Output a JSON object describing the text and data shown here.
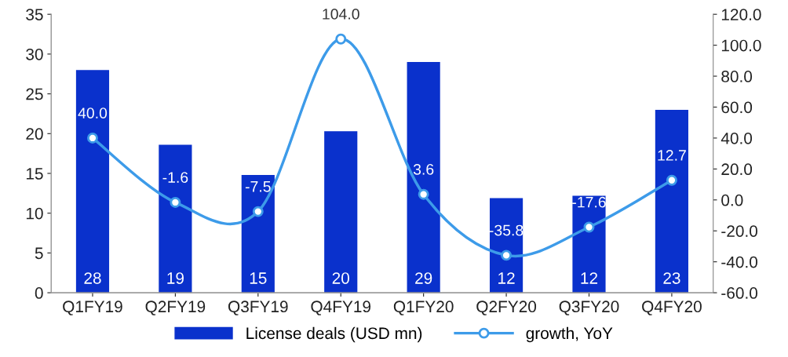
{
  "chart_data": {
    "type": "bar",
    "categories": [
      "Q1FY19",
      "Q2FY19",
      "Q3FY19",
      "Q4FY19",
      "Q1FY20",
      "Q2FY20",
      "Q3FY20",
      "Q4FY20"
    ],
    "series": [
      {
        "name": "License deals (USD mn)",
        "color": "#0a31cc",
        "values": [
          28.0,
          18.6,
          14.8,
          20.3,
          29.0,
          11.9,
          12.2,
          23.0
        ],
        "value_labels": [
          "28",
          "19",
          "15",
          "20",
          "29",
          "12",
          "12",
          "23"
        ]
      },
      {
        "name": "growth, YoY",
        "type": "line",
        "axis": "y2",
        "color": "#3d9be9",
        "marker": "circle",
        "values": [
          40.0,
          -1.6,
          -7.5,
          104.0,
          3.6,
          -35.8,
          -17.6,
          12.7
        ],
        "value_labels": [
          "40.0",
          "-1.6",
          "-7.5",
          "104.0",
          "3.6",
          "-35.8",
          "-17.6",
          "12.7"
        ]
      }
    ],
    "ylim": [
      0,
      35
    ],
    "yticks": [
      0,
      5,
      10,
      15,
      20,
      25,
      30,
      35
    ],
    "y2lim": [
      -60,
      120
    ],
    "y2ticks": [
      {
        "value": -60,
        "label": "-60.0"
      },
      {
        "value": -40,
        "label": "-40.0"
      },
      {
        "value": -20,
        "label": "-20.0"
      },
      {
        "value": 0,
        "label": "0.0"
      },
      {
        "value": 20,
        "label": "20.0"
      },
      {
        "value": 40,
        "label": "40.0"
      },
      {
        "value": 60,
        "label": "60.0"
      },
      {
        "value": 80,
        "label": "80.0"
      },
      {
        "value": 100,
        "label": "100.0"
      },
      {
        "value": 120,
        "label": "120.0"
      }
    ],
    "legend": "bottom",
    "grid": false
  }
}
